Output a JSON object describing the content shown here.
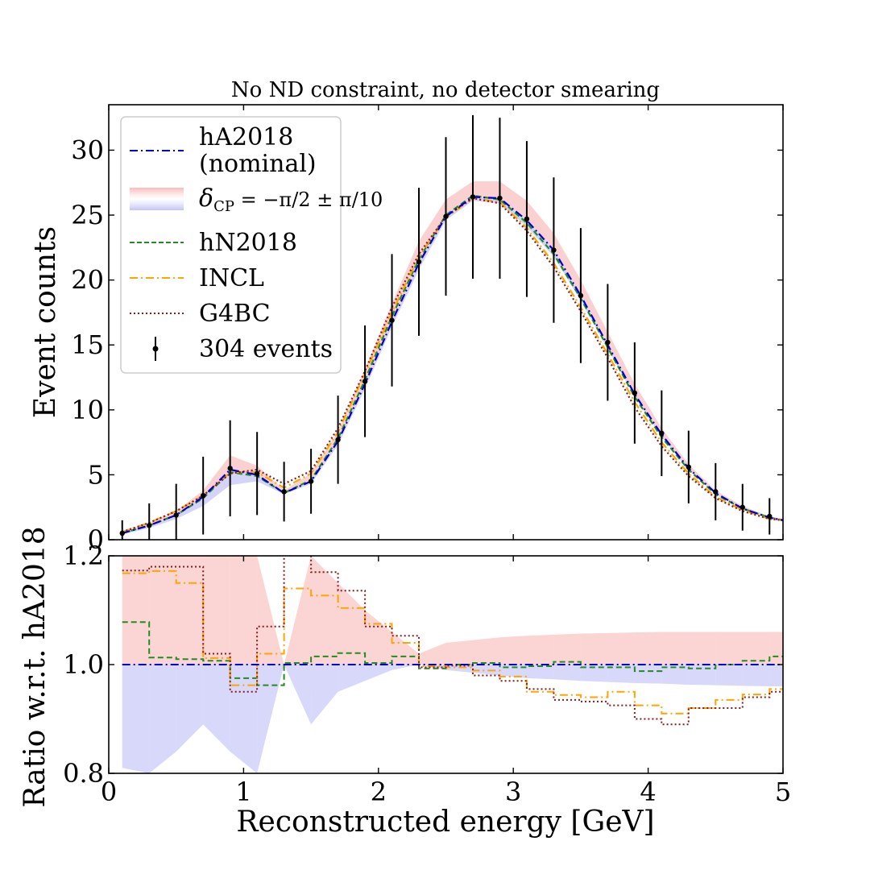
{
  "chart_data": [
    {
      "type": "line",
      "panel": "top",
      "title": "No ND constraint, no detector smearing",
      "xlabel": "",
      "ylabel": "Event counts",
      "xlim": [
        0,
        5
      ],
      "ylim": [
        0,
        33.5
      ],
      "grid": false,
      "x_ticks": [
        0,
        1,
        2,
        3,
        4,
        5
      ],
      "y_ticks": [
        {
          "value": 0,
          "label": "0"
        },
        {
          "value": 5,
          "label": "5"
        },
        {
          "value": 10,
          "label": "10"
        },
        {
          "value": 15,
          "label": "15"
        },
        {
          "value": 20,
          "label": "20"
        },
        {
          "value": 25,
          "label": "25"
        },
        {
          "value": 30,
          "label": "30"
        }
      ],
      "x": [
        0.1,
        0.3,
        0.5,
        0.7,
        0.9,
        1.1,
        1.3,
        1.5,
        1.7,
        1.9,
        2.1,
        2.3,
        2.5,
        2.7,
        2.9,
        3.1,
        3.3,
        3.5,
        3.7,
        3.9,
        4.1,
        4.3,
        4.5,
        4.7,
        4.9,
        5.0
      ],
      "series": [
        {
          "name": "hA2018 (nominal)",
          "style": "dashdot",
          "color": "#0000cc",
          "values": [
            0.5,
            1.1,
            1.9,
            3.3,
            5.4,
            5.0,
            3.6,
            4.5,
            7.6,
            12.0,
            16.8,
            21.3,
            24.9,
            26.4,
            26.3,
            24.6,
            22.3,
            18.8,
            15.0,
            11.2,
            8.1,
            5.5,
            3.6,
            2.4,
            1.7,
            1.5
          ]
        },
        {
          "name": "hN2018",
          "style": "dashed",
          "color": "#228b22",
          "values": [
            0.5,
            1.1,
            1.9,
            3.2,
            5.2,
            4.9,
            3.6,
            4.6,
            7.8,
            12.3,
            17.2,
            21.6,
            25.0,
            26.5,
            26.2,
            24.4,
            22.0,
            18.6,
            14.8,
            11.0,
            7.9,
            5.4,
            3.5,
            2.4,
            1.7,
            1.5
          ]
        },
        {
          "name": "INCL",
          "style": "dashdot",
          "color": "#ffa500",
          "values": [
            0.6,
            1.3,
            2.2,
            3.4,
            5.2,
            5.2,
            4.0,
            5.1,
            8.3,
            12.8,
            17.5,
            21.8,
            24.8,
            26.3,
            26.0,
            24.0,
            21.3,
            17.9,
            14.3,
            10.6,
            7.5,
            5.1,
            3.3,
            2.3,
            1.6,
            1.5
          ]
        },
        {
          "name": "G4BC",
          "style": "dotted",
          "color": "#8b1a1a",
          "values": [
            0.6,
            1.3,
            2.2,
            3.4,
            5.1,
            5.4,
            4.3,
            5.3,
            8.6,
            13.0,
            17.9,
            22.0,
            24.9,
            26.3,
            25.9,
            23.8,
            21.0,
            17.6,
            14.0,
            10.2,
            7.2,
            4.9,
            3.2,
            2.2,
            1.6,
            1.5
          ]
        }
      ],
      "band": {
        "name": "δCP = −π/2 ± π/10",
        "upper": [
          0.6,
          1.3,
          2.2,
          3.8,
          6.5,
          5.7,
          3.8,
          5.1,
          8.3,
          13.1,
          18.2,
          23.0,
          26.2,
          27.6,
          27.6,
          26.1,
          23.6,
          20.0,
          16.0,
          12.0,
          8.6,
          5.8,
          3.8,
          2.6,
          1.8,
          1.6
        ],
        "lower": [
          0.4,
          0.9,
          1.6,
          2.6,
          4.2,
          4.5,
          3.5,
          4.3,
          7.3,
          11.6,
          16.4,
          20.8,
          24.6,
          26.1,
          25.9,
          24.1,
          21.8,
          18.4,
          14.7,
          11.0,
          7.9,
          5.4,
          3.5,
          2.4,
          1.7,
          1.4
        ],
        "upper_color": "#f7b0b0",
        "lower_color": "#b8b8f5"
      },
      "data_points": {
        "name": "304 events",
        "x": [
          0.1,
          0.3,
          0.5,
          0.7,
          0.9,
          1.1,
          1.3,
          1.5,
          1.7,
          1.9,
          2.1,
          2.3,
          2.5,
          2.7,
          2.9,
          3.1,
          3.3,
          3.5,
          3.7,
          3.9,
          4.1,
          4.3,
          4.5,
          4.7,
          4.9
        ],
        "y": [
          0.5,
          1.1,
          1.9,
          3.4,
          5.5,
          5.1,
          3.7,
          4.5,
          7.7,
          12.2,
          16.9,
          21.4,
          24.9,
          26.4,
          26.3,
          24.7,
          22.3,
          18.8,
          15.2,
          11.3,
          8.2,
          5.6,
          3.7,
          2.5,
          1.8
        ],
        "yerr": [
          1.0,
          1.7,
          2.4,
          3.0,
          3.7,
          3.2,
          2.3,
          2.5,
          3.4,
          4.3,
          5.1,
          5.7,
          6.1,
          6.3,
          6.2,
          6.0,
          5.6,
          5.2,
          4.5,
          3.9,
          3.3,
          2.8,
          2.2,
          1.8,
          1.4
        ]
      },
      "legend": {
        "placement": "top-left",
        "entries": [
          {
            "text": "hA2018",
            "text2": "(nominal)"
          },
          {
            "prefix": "δ",
            "sub": "CP",
            "suffix": " = −π/2 ± π/10"
          },
          {
            "text": "hN2018"
          },
          {
            "text": "INCL"
          },
          {
            "text": "G4BC"
          },
          {
            "text": "304 events"
          }
        ]
      }
    },
    {
      "type": "line",
      "panel": "bottom",
      "xlabel": "Reconstructed energy [GeV]",
      "ylabel": "Ratio w.r.t. hA2018",
      "xlim": [
        0,
        5
      ],
      "ylim": [
        0.8,
        1.2
      ],
      "grid": false,
      "x_ticks": [
        {
          "value": 0,
          "label": "0"
        },
        {
          "value": 1,
          "label": "1"
        },
        {
          "value": 2,
          "label": "2"
        },
        {
          "value": 3,
          "label": "3"
        },
        {
          "value": 4,
          "label": "4"
        },
        {
          "value": 5,
          "label": "5"
        }
      ],
      "y_ticks": [
        {
          "value": 0.8,
          "label": "0.8"
        },
        {
          "value": 1.0,
          "label": "1.0"
        },
        {
          "value": 1.2,
          "label": "1.2"
        }
      ],
      "bin_edges": [
        0.1,
        0.3,
        0.5,
        0.7,
        0.9,
        1.1,
        1.3,
        1.5,
        1.7,
        1.9,
        2.1,
        2.3,
        2.5,
        2.7,
        2.9,
        3.1,
        3.3,
        3.5,
        3.7,
        3.9,
        4.1,
        4.3,
        4.5,
        4.7,
        4.9,
        5.0
      ],
      "series": [
        {
          "name": "hA2018 (nominal)",
          "style": "dashdot",
          "color": "#0000cc",
          "values": [
            1.0,
            1.0,
            1.0,
            1.0,
            1.0,
            1.0,
            1.0,
            1.0,
            1.0,
            1.0,
            1.0,
            1.0,
            1.0,
            1.0,
            1.0,
            1.0,
            1.0,
            1.0,
            1.0,
            1.0,
            1.0,
            1.0,
            1.0,
            1.0,
            1.0
          ]
        },
        {
          "name": "hN2018",
          "style": "dashed",
          "color": "#228b22",
          "values": [
            1.078,
            1.013,
            1.01,
            1.007,
            0.975,
            0.962,
            1.003,
            1.015,
            1.021,
            1.003,
            1.015,
            0.993,
            1.0,
            1.003,
            0.995,
            0.997,
            1.005,
            0.995,
            0.995,
            0.988,
            0.995,
            0.993,
            1.0,
            1.007,
            1.015
          ]
        },
        {
          "name": "INCL",
          "style": "dashdot",
          "color": "#ffa500",
          "values": [
            1.168,
            1.172,
            1.15,
            1.012,
            0.962,
            1.02,
            1.14,
            1.127,
            1.104,
            1.075,
            1.04,
            0.997,
            0.995,
            0.989,
            0.978,
            0.95,
            0.944,
            0.94,
            0.95,
            0.925,
            0.91,
            0.92,
            0.935,
            0.945,
            0.955
          ]
        },
        {
          "name": "G4BC",
          "style": "dotted",
          "color": "#8b1a1a",
          "values": [
            1.173,
            1.18,
            1.18,
            1.02,
            0.95,
            1.07,
            1.22,
            1.17,
            1.136,
            1.07,
            1.053,
            0.995,
            0.998,
            0.98,
            0.97,
            0.955,
            0.935,
            0.932,
            0.925,
            0.9,
            0.89,
            0.92,
            0.92,
            0.94,
            0.95
          ]
        }
      ],
      "band": {
        "x": [
          0.1,
          0.3,
          0.5,
          0.7,
          0.9,
          1.1,
          1.3,
          1.5,
          1.7,
          1.9,
          2.1,
          2.3,
          2.5,
          2.7,
          2.9,
          3.1,
          3.3,
          3.5,
          3.7,
          3.9,
          4.1,
          4.3,
          4.5,
          4.7,
          4.9,
          5.0
        ],
        "upper": [
          1.2,
          1.2,
          1.2,
          1.2,
          1.2,
          1.2,
          1.0,
          1.2,
          1.15,
          1.1,
          1.06,
          1.02,
          1.04,
          1.045,
          1.05,
          1.053,
          1.055,
          1.057,
          1.058,
          1.059,
          1.06,
          1.06,
          1.06,
          1.06,
          1.06,
          1.06
        ],
        "lower": [
          0.81,
          0.8,
          0.84,
          0.89,
          0.84,
          0.8,
          1.0,
          0.89,
          0.95,
          0.97,
          0.99,
          1.0,
          0.99,
          0.985,
          0.98,
          0.975,
          0.973,
          0.97,
          0.968,
          0.966,
          0.965,
          0.963,
          0.962,
          0.961,
          0.96,
          0.96
        ]
      }
    }
  ]
}
